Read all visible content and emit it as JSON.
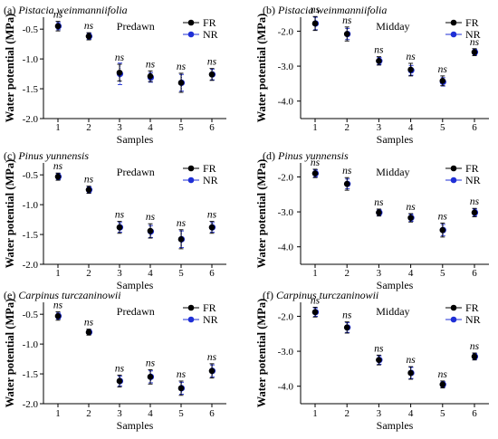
{
  "chart_data": [
    {
      "type": "scatter",
      "panel": "(a)",
      "title": "Pistacia weinmanniifolia",
      "condition": "Predawn",
      "xlabel": "Samples",
      "ylabel": "Water potential (MPa)",
      "x": [
        1,
        2,
        3,
        4,
        5,
        6
      ],
      "xticks": [
        "1",
        "2",
        "3",
        "4",
        "5",
        "6"
      ],
      "ylim": [
        -2.0,
        -0.3
      ],
      "yticks": [
        -0.5,
        -1.0,
        -1.5,
        -2.0
      ],
      "ytick_labels": [
        "-0.5",
        "-1.0",
        "-1.5",
        "-2.0"
      ],
      "significance": [
        "ns",
        "ns",
        "ns",
        "ns",
        "ns",
        "ns"
      ],
      "legend": "top-right",
      "series": [
        {
          "name": "FR",
          "color": "#000000",
          "values": [
            -0.45,
            -0.62,
            -1.23,
            -1.29,
            -1.4,
            -1.26
          ],
          "errors": [
            0.08,
            0.06,
            0.14,
            0.09,
            0.16,
            0.1
          ]
        },
        {
          "name": "NR",
          "color": "#1f2fd6",
          "values": [
            -0.45,
            -0.62,
            -1.25,
            -1.31,
            -1.4,
            -1.26
          ],
          "errors": [
            0.06,
            0.05,
            0.18,
            0.08,
            0.14,
            0.09
          ]
        }
      ]
    },
    {
      "type": "scatter",
      "panel": "(b)",
      "title": "Pistacia weinmanniifolia",
      "condition": "Midday",
      "xlabel": "Samples",
      "ylabel": "Water potential (MPa)",
      "x": [
        1,
        2,
        3,
        4,
        5,
        6
      ],
      "xticks": [
        "1",
        "2",
        "3",
        "4",
        "5",
        "6"
      ],
      "ylim": [
        -4.5,
        -1.6
      ],
      "yticks": [
        -2.0,
        -3.0,
        -4.0
      ],
      "ytick_labels": [
        "-2.0",
        "-3.0",
        "-4.0"
      ],
      "significance": [
        "ns",
        "ns",
        "ns",
        "ns",
        "ns",
        "ns"
      ],
      "legend": "top-right",
      "series": [
        {
          "name": "FR",
          "color": "#000000",
          "values": [
            -1.78,
            -2.08,
            -2.85,
            -3.1,
            -3.42,
            -2.6
          ],
          "errors": [
            0.2,
            0.2,
            0.12,
            0.18,
            0.14,
            0.1
          ]
        },
        {
          "name": "NR",
          "color": "#1f2fd6",
          "values": [
            -1.78,
            -2.08,
            -2.85,
            -3.12,
            -3.45,
            -2.6
          ],
          "errors": [
            0.18,
            0.16,
            0.1,
            0.14,
            0.12,
            0.08
          ]
        }
      ]
    },
    {
      "type": "scatter",
      "panel": "(c)",
      "title": "Pinus yunnensis",
      "condition": "Predawn",
      "xlabel": "Samples",
      "ylabel": "Water potential (MPa)",
      "x": [
        1,
        2,
        3,
        4,
        5,
        6
      ],
      "xticks": [
        "1",
        "2",
        "3",
        "4",
        "5",
        "6"
      ],
      "ylim": [
        -2.0,
        -0.3
      ],
      "yticks": [
        -0.5,
        -1.0,
        -1.5,
        -2.0
      ],
      "ytick_labels": [
        "-0.5",
        "-1.0",
        "-1.5",
        "-2.0"
      ],
      "significance": [
        "ns",
        "ns",
        "ns",
        "ns",
        "ns",
        "ns"
      ],
      "legend": "top-right",
      "series": [
        {
          "name": "FR",
          "color": "#000000",
          "values": [
            -0.53,
            -0.75,
            -1.38,
            -1.44,
            -1.58,
            -1.38
          ],
          "errors": [
            0.06,
            0.06,
            0.1,
            0.12,
            0.16,
            0.1
          ]
        },
        {
          "name": "NR",
          "color": "#1f2fd6",
          "values": [
            -0.53,
            -0.75,
            -1.38,
            -1.45,
            -1.58,
            -1.38
          ],
          "errors": [
            0.05,
            0.05,
            0.08,
            0.1,
            0.14,
            0.08
          ]
        }
      ]
    },
    {
      "type": "scatter",
      "panel": "(d)",
      "title": "Pinus yunnensis",
      "condition": "Midday",
      "xlabel": "Samples",
      "ylabel": "Water potential (MPa)",
      "x": [
        1,
        2,
        3,
        4,
        5,
        6
      ],
      "xticks": [
        "1",
        "2",
        "3",
        "4",
        "5",
        "6"
      ],
      "ylim": [
        -4.5,
        -1.6
      ],
      "yticks": [
        -2.0,
        -3.0,
        -4.0
      ],
      "ytick_labels": [
        "-2.0",
        "-3.0",
        "-4.0"
      ],
      "significance": [
        "ns",
        "ns",
        "ns",
        "ns",
        "ns",
        "ns"
      ],
      "legend": "top-right",
      "series": [
        {
          "name": "FR",
          "color": "#000000",
          "values": [
            -1.9,
            -2.2,
            -3.02,
            -3.17,
            -3.52,
            -3.02
          ],
          "errors": [
            0.12,
            0.18,
            0.1,
            0.12,
            0.2,
            0.12
          ]
        },
        {
          "name": "NR",
          "color": "#1f2fd6",
          "values": [
            -1.9,
            -2.2,
            -3.02,
            -3.17,
            -3.52,
            -3.02
          ],
          "errors": [
            0.1,
            0.14,
            0.08,
            0.1,
            0.16,
            0.1
          ]
        }
      ]
    },
    {
      "type": "scatter",
      "panel": "(e)",
      "title": "Carpinus turczaninowii",
      "condition": "Predawn",
      "xlabel": "Samples",
      "ylabel": "Water potential (MPa)",
      "x": [
        1,
        2,
        3,
        4,
        5,
        6
      ],
      "xticks": [
        "1",
        "2",
        "3",
        "4",
        "5",
        "6"
      ],
      "ylim": [
        -2.0,
        -0.3
      ],
      "yticks": [
        -0.5,
        -1.0,
        -1.5,
        -2.0
      ],
      "ytick_labels": [
        "-0.5",
        "-1.0",
        "-1.5",
        "-2.0"
      ],
      "significance": [
        "ns",
        "ns",
        "ns",
        "ns",
        "ns",
        "ns"
      ],
      "legend": "top-right",
      "series": [
        {
          "name": "FR",
          "color": "#000000",
          "values": [
            -0.53,
            -0.8,
            -1.62,
            -1.55,
            -1.74,
            -1.45
          ],
          "errors": [
            0.07,
            0.05,
            0.1,
            0.12,
            0.12,
            0.12
          ]
        },
        {
          "name": "NR",
          "color": "#1f2fd6",
          "values": [
            -0.53,
            -0.8,
            -1.62,
            -1.55,
            -1.74,
            -1.45
          ],
          "errors": [
            0.05,
            0.04,
            0.08,
            0.1,
            0.1,
            0.1
          ]
        }
      ]
    },
    {
      "type": "scatter",
      "panel": "(f)",
      "title": "Carpinus turczaninowii",
      "condition": "Midday",
      "xlabel": "Samples",
      "ylabel": "Water potential (MPa)",
      "x": [
        1,
        2,
        3,
        4,
        5,
        6
      ],
      "xticks": [
        "1",
        "2",
        "3",
        "4",
        "5",
        "6"
      ],
      "ylim": [
        -4.5,
        -1.6
      ],
      "yticks": [
        -2.0,
        -3.0,
        -4.0
      ],
      "ytick_labels": [
        "-2.0",
        "-3.0",
        "-4.0"
      ],
      "significance": [
        "ns",
        "ns",
        "ns",
        "ns",
        "ns",
        "ns"
      ],
      "legend": "top-right",
      "series": [
        {
          "name": "FR",
          "color": "#000000",
          "values": [
            -1.88,
            -2.32,
            -3.25,
            -3.62,
            -3.95,
            -3.15
          ],
          "errors": [
            0.14,
            0.16,
            0.14,
            0.18,
            0.1,
            0.1
          ]
        },
        {
          "name": "NR",
          "color": "#1f2fd6",
          "values": [
            -1.88,
            -2.32,
            -3.25,
            -3.62,
            -3.95,
            -3.15
          ],
          "errors": [
            0.12,
            0.14,
            0.12,
            0.16,
            0.08,
            0.08
          ]
        }
      ]
    }
  ]
}
